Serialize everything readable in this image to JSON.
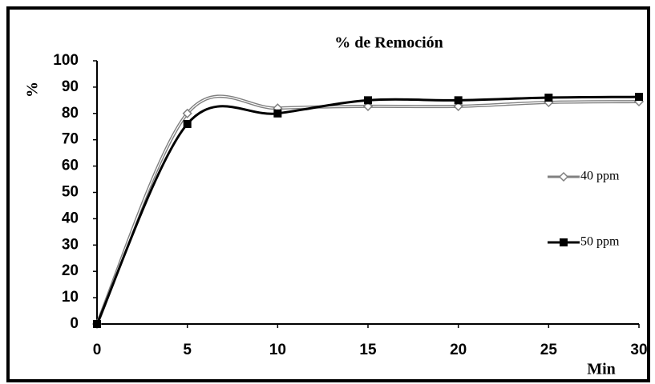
{
  "chart_data": {
    "type": "line",
    "title": "% de Remoción",
    "x_label": "Min",
    "y_label": "%",
    "x": [
      0,
      5,
      10,
      15,
      20,
      25,
      30
    ],
    "series": [
      {
        "name": "40 ppm",
        "color": "#808080",
        "marker": "diamond",
        "values": [
          0,
          80,
          82,
          82.7,
          82.7,
          84.2,
          84.5
        ]
      },
      {
        "name": "50 ppm",
        "color": "#000000",
        "marker": "square",
        "values": [
          0,
          76,
          80,
          85,
          85,
          86,
          86.3
        ]
      }
    ],
    "xlim": [
      0,
      30
    ],
    "xticks": [
      0,
      5,
      10,
      15,
      20,
      25,
      30
    ],
    "ylim": [
      0,
      100
    ],
    "yticks": [
      0,
      10,
      20,
      30,
      40,
      50,
      60,
      70,
      80,
      90,
      100
    ],
    "smooth": true,
    "legend": "right"
  }
}
